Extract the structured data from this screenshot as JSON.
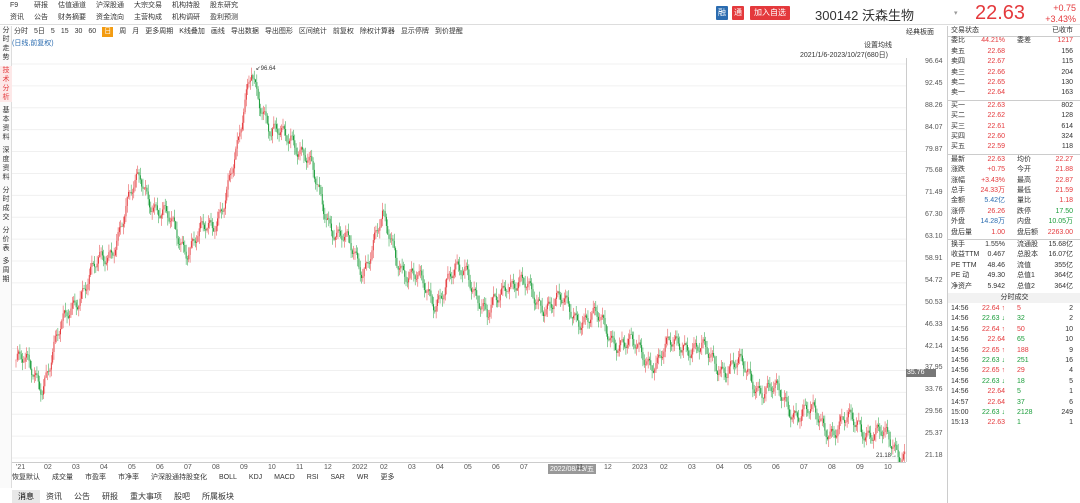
{
  "top": {
    "nav": [
      "F9",
      "研报",
      "估值通道",
      "沪深股通",
      "大宗交易",
      "机构持股",
      "股东研究",
      "资讯",
      "公告",
      "财务摘要",
      "资金流向",
      "主营构成",
      "机构调研",
      "盈利预测"
    ],
    "btn_rong": "融",
    "btn_tong": "通",
    "btn_add": "加入自选",
    "code_name": "300142 沃森生物",
    "price": "22.63",
    "chg": "+0.75",
    "pct": "+3.43%"
  },
  "rail": [
    "分时走势",
    "技术分析",
    "基本资料",
    "深度资料",
    "分时成交",
    "分价表",
    "多周期"
  ],
  "toolbar": [
    "分时",
    "5日",
    "5",
    "15",
    "30",
    "60",
    "日",
    "周",
    "月",
    "更多周期",
    "K线叠加",
    "画线",
    "导出数据",
    "导出图形",
    "区间统计",
    "前复权",
    "除权计算器",
    "显示停牌",
    "到价提醒"
  ],
  "toolbar_active": "日",
  "chart": {
    "settings": "设置均线",
    "jdmb": "经典板面",
    "range": "2021/1/6-2023/10/27(680日)",
    "sub": "(日线,前复权)",
    "max_label": "96.64",
    "min_label": "21.18",
    "current_tag": "35.76",
    "yticks": [
      "96.64",
      "92.45",
      "88.26",
      "84.07",
      "79.87",
      "75.68",
      "71.49",
      "67.30",
      "63.10",
      "58.91",
      "54.72",
      "50.53",
      "46.33",
      "42.14",
      "37.95",
      "33.76",
      "29.56",
      "25.37",
      "21.18"
    ],
    "xticks": [
      "'21",
      "02",
      "03",
      "04",
      "05",
      "06",
      "07",
      "08",
      "09",
      "10",
      "11",
      "12",
      "2022",
      "02",
      "03",
      "04",
      "05",
      "06",
      "07",
      "2022/08/19/五",
      "11",
      "12",
      "2023",
      "02",
      "03",
      "04",
      "05",
      "06",
      "07",
      "08",
      "09",
      "10"
    ]
  },
  "chart_data": {
    "type": "candlestick",
    "x_range": [
      "2021/1/6",
      "2023/10/27"
    ],
    "ylim": [
      21.18,
      96.64
    ],
    "anchors": [
      [
        0,
        40
      ],
      [
        20,
        36
      ],
      [
        45,
        52
      ],
      [
        70,
        60
      ],
      [
        95,
        75
      ],
      [
        110,
        68
      ],
      [
        130,
        62
      ],
      [
        150,
        65
      ],
      [
        170,
        80
      ],
      [
        180,
        96.64
      ],
      [
        195,
        82
      ],
      [
        210,
        84
      ],
      [
        225,
        76
      ],
      [
        245,
        64
      ],
      [
        265,
        58
      ],
      [
        280,
        66
      ],
      [
        300,
        56
      ],
      [
        320,
        52
      ],
      [
        345,
        58
      ],
      [
        360,
        47
      ],
      [
        375,
        56
      ],
      [
        395,
        52
      ],
      [
        420,
        50
      ],
      [
        445,
        47
      ],
      [
        470,
        42
      ],
      [
        490,
        40
      ],
      [
        510,
        44
      ],
      [
        530,
        40
      ],
      [
        555,
        38
      ],
      [
        575,
        34
      ],
      [
        600,
        30
      ],
      [
        625,
        27
      ],
      [
        645,
        28
      ],
      [
        660,
        25
      ],
      [
        679,
        22.63
      ]
    ]
  },
  "indicators": [
    "恢复默认",
    "成交量",
    "市盈率",
    "市净率",
    "沪深股通持股变化",
    "BOLL",
    "KDJ",
    "MACD",
    "RSI",
    "SAR",
    "WR",
    "更多"
  ],
  "bottom_tabs": [
    "消息",
    "资讯",
    "公告",
    "研报",
    "重大事项",
    "股吧",
    "所属板块"
  ],
  "right": {
    "status_label": "交易状态",
    "status_val": "已收市",
    "webi": [
      "委比",
      "44.21%",
      "委差",
      "1217"
    ],
    "asks": [
      [
        "卖五",
        "22.68",
        "156"
      ],
      [
        "卖四",
        "22.67",
        "115"
      ],
      [
        "卖三",
        "22.66",
        "204"
      ],
      [
        "卖二",
        "22.65",
        "130"
      ],
      [
        "卖一",
        "22.64",
        "163"
      ]
    ],
    "bids": [
      [
        "买一",
        "22.63",
        "802"
      ],
      [
        "买二",
        "22.62",
        "128"
      ],
      [
        "买三",
        "22.61",
        "614"
      ],
      [
        "买四",
        "22.60",
        "324"
      ],
      [
        "买五",
        "22.59",
        "118"
      ]
    ],
    "stats": [
      [
        "最新",
        "22.63",
        "均价",
        "22.27"
      ],
      [
        "涨跌",
        "+0.75",
        "今开",
        "21.88"
      ],
      [
        "涨幅",
        "+3.43%",
        "最高",
        "22.87"
      ],
      [
        "总手",
        "24.33万",
        "最低",
        "21.59"
      ],
      [
        "金额",
        "5.42亿",
        "量比",
        "1.18"
      ],
      [
        "涨停",
        "26.26",
        "跌停",
        "17.50"
      ],
      [
        "外盘",
        "14.28万",
        "内盘",
        "10.05万"
      ],
      [
        "盘后量",
        "1.00",
        "盘后额",
        "2263.00"
      ]
    ],
    "stats2": [
      [
        "换手",
        "1.55%",
        "流通股",
        "15.68亿"
      ],
      [
        "收益TTM",
        "0.467",
        "总股本",
        "16.07亿"
      ],
      [
        "PE TTM",
        "48.46",
        "流值",
        "355亿"
      ],
      [
        "PE 动",
        "49.30",
        "总值1",
        "364亿"
      ],
      [
        "净资产",
        "5.942",
        "总值2",
        "364亿"
      ]
    ],
    "ticks_title": "分时成交",
    "ticks": [
      [
        "14:56",
        "22.64 ↑",
        "5",
        "2"
      ],
      [
        "14:56",
        "22.63 ↓",
        "32",
        "2"
      ],
      [
        "14:56",
        "22.64 ↑",
        "50",
        "10"
      ],
      [
        "14:56",
        "22.64",
        "65",
        "10"
      ],
      [
        "14:56",
        "22.65 ↑",
        "188",
        "9"
      ],
      [
        "14:56",
        "22.63 ↓",
        "251",
        "16"
      ],
      [
        "14:56",
        "22.65 ↑",
        "29",
        "4"
      ],
      [
        "14:56",
        "22.63 ↓",
        "18",
        "5"
      ],
      [
        "14:56",
        "22.64",
        "5",
        "1"
      ],
      [
        "14:57",
        "22.64",
        "37",
        "6"
      ],
      [
        "15:00",
        "22.63 ↓",
        "2128",
        "249"
      ],
      [
        "15:13",
        "22.63",
        "1",
        "1"
      ]
    ]
  }
}
